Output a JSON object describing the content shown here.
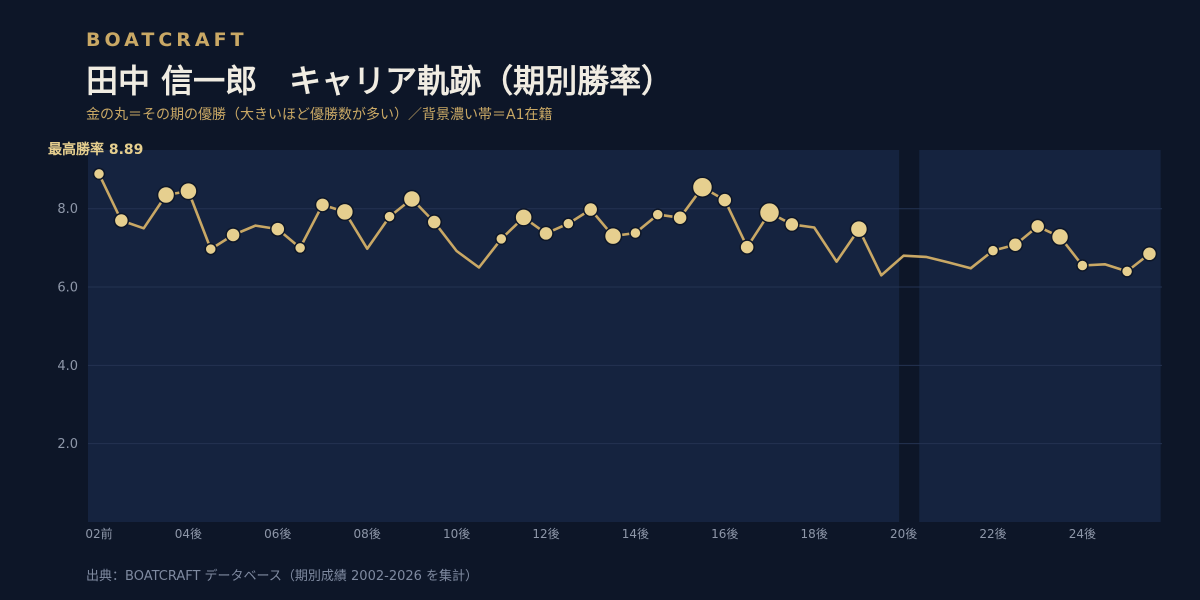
{
  "brand": "BOATCRAFT",
  "title": "田中 信一郎　キャリア軌跡（期別勝率）",
  "subtitle": "金の丸＝その期の優勝（大きいほど優勝数が多い）／背景濃い帯＝A1在籍",
  "source": "出典：BOATCRAFT データベース（期別成績 2002-2026 を集計）",
  "colors": {
    "background": "#0d1628",
    "a1_band": "#15233f",
    "line": "#c9a865",
    "marker": "#e6cf8f",
    "brand": "#c9a865"
  },
  "chart_data": {
    "type": "line",
    "title": "田中 信一郎　キャリア軌跡（期別勝率）",
    "xlabel": "",
    "ylabel": "",
    "ylim": [
      0,
      9.5
    ],
    "yticks": [
      2.0,
      4.0,
      6.0,
      8.0
    ],
    "ytick_labels": [
      "2.0",
      "4.0",
      "6.0",
      "8.0"
    ],
    "x_tick_labels": [
      "02前",
      "04後",
      "06後",
      "08後",
      "10後",
      "12後",
      "14後",
      "16後",
      "18後",
      "20後",
      "22後",
      "24後"
    ],
    "x_tick_indices": [
      0,
      4,
      8,
      12,
      16,
      20,
      24,
      28,
      32,
      36,
      40,
      44
    ],
    "grid": true,
    "legend": "none",
    "peak_label": "最高勝率 8.89",
    "a1_bands": [
      [
        0,
        35.8
      ],
      [
        36.7,
        47.5
      ]
    ],
    "series": [
      {
        "values": [
          8.89,
          7.7,
          7.5,
          8.35,
          8.45,
          6.97,
          7.33,
          7.57,
          7.48,
          7.0,
          8.1,
          7.92,
          6.98,
          7.8,
          8.25,
          7.66,
          6.92,
          6.5,
          7.23,
          7.78,
          7.37,
          7.62,
          7.98,
          7.3,
          7.38,
          7.85,
          7.77,
          8.55,
          8.22,
          7.02,
          7.9,
          7.6,
          7.52,
          6.65,
          7.48,
          6.3,
          6.8,
          6.77,
          6.63,
          6.48,
          6.93,
          7.08,
          7.55,
          7.28,
          6.55,
          6.58,
          6.4,
          6.85
        ],
        "wins": [
          1,
          2,
          0,
          3,
          3,
          1,
          2,
          0,
          2,
          1,
          2,
          3,
          0,
          1,
          3,
          2,
          0,
          0,
          1,
          3,
          2,
          1,
          2,
          3,
          1,
          1,
          2,
          4,
          2,
          2,
          4,
          2,
          0,
          0,
          3,
          0,
          0,
          0,
          0,
          0,
          1,
          2,
          2,
          3,
          1,
          0,
          1,
          2
        ]
      }
    ]
  }
}
